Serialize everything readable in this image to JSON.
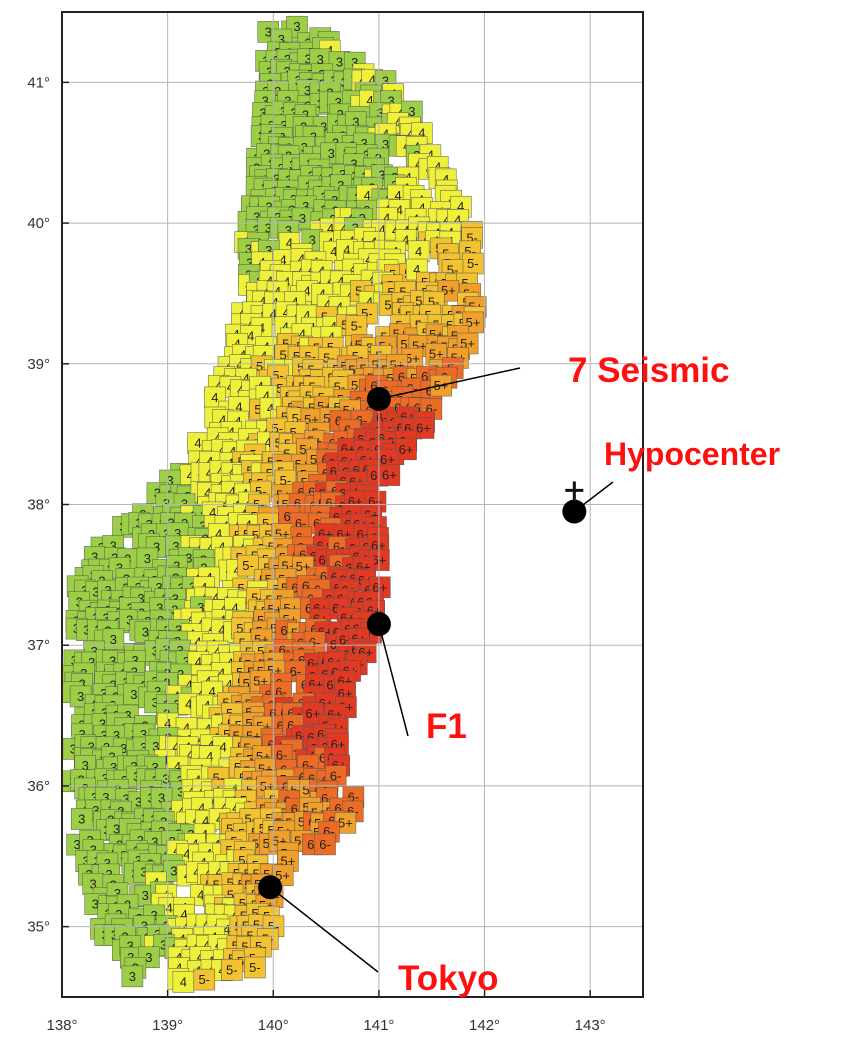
{
  "map": {
    "axes": {
      "lon_range": [
        138,
        143.5
      ],
      "lat_range": [
        34.5,
        41.5
      ],
      "lon_ticks": [
        {
          "value": 138,
          "label": "138°"
        },
        {
          "value": 139,
          "label": "139°"
        },
        {
          "value": 140,
          "label": "140°"
        },
        {
          "value": 141,
          "label": "141°"
        },
        {
          "value": 142,
          "label": "142°"
        },
        {
          "value": 143,
          "label": "143°"
        }
      ],
      "lat_ticks": [
        {
          "value": 41,
          "label": "41°"
        },
        {
          "value": 40,
          "label": "40°"
        },
        {
          "value": 39,
          "label": "39°"
        },
        {
          "value": 38,
          "label": "38°"
        },
        {
          "value": 37,
          "label": "37°"
        },
        {
          "value": 36,
          "label": "36°"
        },
        {
          "value": 35,
          "label": "35°"
        }
      ],
      "grid": true
    },
    "intensity_colors": {
      "2": "#a8dde6",
      "3": "#9ccf45",
      "4": "#eef03a",
      "5-": "#f2c230",
      "5+": "#f0a02a",
      "6-": "#ec6c25",
      "6+": "#e23a22",
      "7": "#b0307a"
    },
    "hypocenter": {
      "lon": 142.85,
      "lat": 38.1,
      "marker": "+"
    },
    "points": [
      {
        "name": "seismic-7",
        "label": "7 Seismic",
        "lon": 141.0,
        "lat": 38.75
      },
      {
        "name": "hypocenter",
        "label": "Hypocenter",
        "lon": 142.85,
        "lat": 37.95
      },
      {
        "name": "f1",
        "label": "F1",
        "lon": 141.0,
        "lat": 37.15
      },
      {
        "name": "tokyo",
        "label": "Tokyo",
        "lon": 139.97,
        "lat": 35.28
      }
    ]
  },
  "annotation_color": "#ff1010",
  "dot_color": "#000000"
}
